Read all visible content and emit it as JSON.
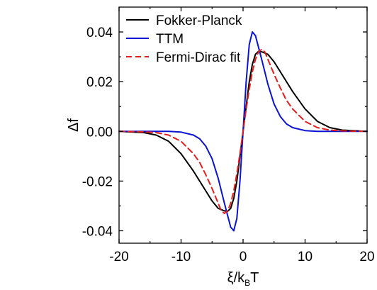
{
  "chart_data": {
    "type": "line",
    "title": "",
    "xlabel": "ξ/k_BT",
    "xlabel_parts": {
      "main": "ξ/k",
      "sub": "B",
      "tail": "T"
    },
    "ylabel": "Δf",
    "xlim": [
      -20,
      20
    ],
    "ylim": [
      -0.045,
      0.05
    ],
    "xticks": [
      -20,
      -10,
      0,
      10,
      20
    ],
    "xtick_labels": [
      "-20",
      "-10",
      "0",
      "10",
      "20"
    ],
    "yticks": [
      -0.04,
      -0.02,
      0.0,
      0.02,
      0.04
    ],
    "ytick_labels": [
      "-0.04",
      "-0.02",
      "0.00",
      "0.02",
      "0.04"
    ],
    "grid": false,
    "legend_position": "top-left",
    "series": [
      {
        "name": "Fokker-Planck",
        "color": "#000000",
        "dash": "solid",
        "x": [
          -20,
          -16,
          -14,
          -12,
          -10,
          -8,
          -6,
          -5,
          -4,
          -3,
          -2.5,
          -2,
          -1.5,
          -1,
          -0.5,
          0,
          0.5,
          1,
          1.5,
          2,
          2.5,
          3,
          4,
          5,
          6,
          8,
          10,
          12,
          14,
          16,
          20
        ],
        "y": [
          0.0,
          -0.0005,
          -0.0015,
          -0.004,
          -0.009,
          -0.016,
          -0.024,
          -0.028,
          -0.031,
          -0.032,
          -0.0322,
          -0.031,
          -0.027,
          -0.02,
          -0.01,
          0.0,
          0.01,
          0.02,
          0.027,
          0.031,
          0.0322,
          0.032,
          0.031,
          0.028,
          0.024,
          0.016,
          0.009,
          0.004,
          0.0015,
          0.0005,
          0.0
        ]
      },
      {
        "name": "TTM",
        "color": "#0a14d2",
        "dash": "solid",
        "x": [
          -20,
          -12,
          -10,
          -8,
          -7,
          -6,
          -5,
          -4,
          -3,
          -2,
          -1.5,
          -1,
          -0.5,
          0,
          0.5,
          1,
          1.5,
          2,
          3,
          4,
          5,
          6,
          7,
          8,
          10,
          12,
          20
        ],
        "y": [
          0.0,
          0.0,
          -0.0003,
          -0.0015,
          -0.003,
          -0.006,
          -0.011,
          -0.019,
          -0.029,
          -0.0385,
          -0.04,
          -0.035,
          -0.02,
          0.0,
          0.02,
          0.035,
          0.04,
          0.0385,
          0.029,
          0.019,
          0.011,
          0.006,
          0.003,
          0.0015,
          0.0003,
          0.0,
          0.0
        ]
      },
      {
        "name": "Fermi-Dirac fit",
        "color": "#e41e1e",
        "dash": "dashed",
        "x": [
          -20,
          -16,
          -14,
          -12,
          -10,
          -8,
          -7,
          -6,
          -5,
          -4,
          -3.5,
          -3,
          -2.5,
          -2,
          -1.5,
          -1,
          -0.5,
          0,
          0.5,
          1,
          1.5,
          2,
          2.5,
          3,
          3.5,
          4,
          5,
          6,
          7,
          8,
          10,
          12,
          14,
          16,
          20
        ],
        "y": [
          0.0,
          -0.0002,
          -0.0005,
          -0.0015,
          -0.004,
          -0.009,
          -0.0125,
          -0.0175,
          -0.023,
          -0.029,
          -0.032,
          -0.033,
          -0.032,
          -0.029,
          -0.024,
          -0.017,
          -0.009,
          0.0,
          0.009,
          0.017,
          0.024,
          0.029,
          0.032,
          0.033,
          0.032,
          0.029,
          0.023,
          0.0175,
          0.0125,
          0.009,
          0.004,
          0.0015,
          0.0005,
          0.0002,
          0.0
        ]
      }
    ]
  }
}
